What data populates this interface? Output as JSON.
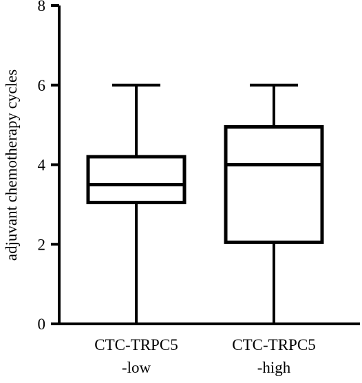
{
  "chart_data": {
    "type": "box",
    "title": "",
    "xlabel": "",
    "ylabel": "adjuvant chemotherapy cycles",
    "ylim": [
      0,
      8
    ],
    "yticks": [
      "0",
      "2",
      "4",
      "6",
      "8"
    ],
    "grid": false,
    "legend": "none",
    "categories": [
      {
        "line1": "CTC-TRPC5",
        "line2": "-low"
      },
      {
        "line1": "CTC-TRPC5",
        "line2": "-high"
      }
    ],
    "boxes": [
      {
        "min": 0,
        "q1": 3.05,
        "median": 3.5,
        "q3": 4.2,
        "max": 6
      },
      {
        "min": 0,
        "q1": 2.05,
        "median": 4.0,
        "q3": 4.95,
        "max": 6
      }
    ]
  }
}
